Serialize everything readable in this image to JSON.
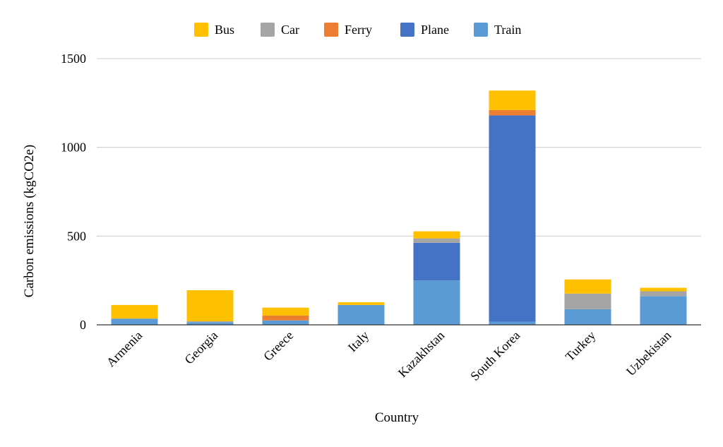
{
  "chart_data": {
    "type": "bar",
    "stacked": true,
    "xlabel": "Country",
    "ylabel": "Carbon emissions (kgCO2e)",
    "ylim": [
      0,
      1500
    ],
    "yticks": [
      0,
      500,
      1000,
      1500
    ],
    "grid": true,
    "legend_position": "top",
    "categories": [
      "Armenia",
      "Georgia",
      "Greece",
      "Italy",
      "Kazakhstan",
      "South Korea",
      "Turkey",
      "Uzbekistan"
    ],
    "series": [
      {
        "name": "Train",
        "color": "#5B9BD5",
        "values": [
          35,
          15,
          25,
          112,
          250,
          18,
          88,
          162
        ]
      },
      {
        "name": "Plane",
        "color": "#4472C4",
        "values": [
          0,
          0,
          0,
          0,
          212,
          1162,
          0,
          0
        ]
      },
      {
        "name": "Ferry",
        "color": "#ED7D31",
        "values": [
          0,
          0,
          27,
          0,
          0,
          30,
          0,
          0
        ]
      },
      {
        "name": "Car",
        "color": "#A5A5A5",
        "values": [
          0,
          5,
          0,
          0,
          25,
          0,
          88,
          27
        ]
      },
      {
        "name": "Bus",
        "color": "#FFC000",
        "values": [
          77,
          175,
          45,
          15,
          40,
          110,
          80,
          20
        ]
      }
    ],
    "legend_order": [
      "Bus",
      "Car",
      "Ferry",
      "Plane",
      "Train"
    ]
  }
}
